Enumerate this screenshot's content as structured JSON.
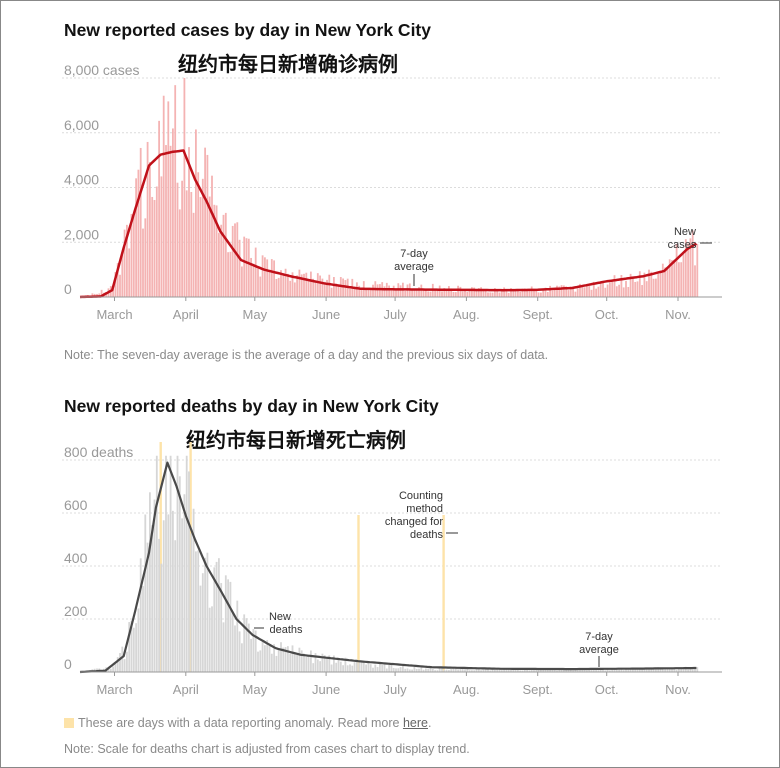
{
  "cases_chart": {
    "title": "New reported cases by day in New York City",
    "subtitle_cn": "纽约市每日新增确诊病例",
    "y_ticks": [
      "8,000 cases",
      "6,000",
      "4,000",
      "2,000",
      "0"
    ],
    "x_ticks": [
      "March",
      "April",
      "May",
      "June",
      "July",
      "Aug.",
      "Sept.",
      "Oct.",
      "Nov."
    ],
    "annotation_avg": [
      "7-day",
      "average"
    ],
    "annotation_new": [
      "New",
      "cases"
    ],
    "note": "Note: The seven-day average is the average of a day and the previous six days of data."
  },
  "deaths_chart": {
    "title": "New reported deaths by day in New York City",
    "subtitle_cn": "纽约市每日新增死亡病例",
    "y_ticks": [
      "800 deaths",
      "600",
      "400",
      "200",
      "0"
    ],
    "x_ticks": [
      "March",
      "April",
      "May",
      "June",
      "July",
      "Aug.",
      "Sept.",
      "Oct.",
      "Nov."
    ],
    "annotation_new": [
      "New",
      "deaths"
    ],
    "annotation_method": [
      "Counting",
      "method",
      "changed for",
      "deaths"
    ],
    "annotation_avg": [
      "7-day",
      "average"
    ],
    "legend_text": "These are days with a data reporting anomaly. Read more ",
    "legend_link": "here",
    "legend_end": ".",
    "note": "Note: Scale for deaths chart is adjusted from cases chart to display trend."
  },
  "colors": {
    "case_bar": "#f4b3b3",
    "case_avg": "#c0111a",
    "death_bar": "#d6d6d6",
    "death_avg": "#4a4a4a",
    "anomaly": "#fde3a9"
  },
  "chart_data": [
    {
      "type": "bar",
      "title": "New reported cases by day in New York City",
      "x_start": "2020-03-01",
      "ylim": [
        0,
        8000
      ],
      "series": [
        {
          "name": "New cases",
          "x": [
            "2020-03-01",
            "2020-03-15",
            "2020-03-20",
            "2020-03-25",
            "2020-03-31",
            "2020-04-05",
            "2020-04-10",
            "2020-04-15",
            "2020-04-20",
            "2020-04-25",
            "2020-05-01",
            "2020-05-10",
            "2020-05-20",
            "2020-06-01",
            "2020-06-15",
            "2020-07-01",
            "2020-07-15",
            "2020-08-01",
            "2020-08-15",
            "2020-09-01",
            "2020-09-15",
            "2020-10-01",
            "2020-10-15",
            "2020-11-01",
            "2020-11-10",
            "2020-11-20",
            "2020-11-24"
          ],
          "y": [
            0,
            300,
            2200,
            3400,
            4800,
            5300,
            5600,
            5400,
            4600,
            4200,
            3200,
            1700,
            1100,
            800,
            650,
            420,
            380,
            350,
            300,
            260,
            280,
            330,
            560,
            720,
            1000,
            1700,
            2000
          ]
        },
        {
          "name": "7-day average",
          "x": [
            "2020-03-01",
            "2020-03-10",
            "2020-03-15",
            "2020-03-20",
            "2020-03-25",
            "2020-03-31",
            "2020-04-05",
            "2020-04-10",
            "2020-04-15",
            "2020-04-20",
            "2020-04-25",
            "2020-05-01",
            "2020-05-10",
            "2020-05-20",
            "2020-06-01",
            "2020-06-15",
            "2020-07-01",
            "2020-07-15",
            "2020-08-01",
            "2020-08-15",
            "2020-09-01",
            "2020-09-15",
            "2020-10-01",
            "2020-10-15",
            "2020-11-01",
            "2020-11-10",
            "2020-11-20",
            "2020-11-24"
          ],
          "y": [
            0,
            20,
            250,
            1800,
            3200,
            4800,
            5200,
            5300,
            5350,
            4300,
            3500,
            2400,
            1350,
            1000,
            750,
            500,
            300,
            280,
            270,
            260,
            250,
            260,
            330,
            560,
            760,
            950,
            1750,
            1950
          ]
        }
      ]
    },
    {
      "type": "bar",
      "title": "New reported deaths by day in New York City",
      "x_start": "2020-03-01",
      "ylim": [
        0,
        800
      ],
      "series": [
        {
          "name": "New deaths",
          "x": [
            "2020-03-01",
            "2020-03-15",
            "2020-03-20",
            "2020-03-25",
            "2020-03-31",
            "2020-04-05",
            "2020-04-08",
            "2020-04-12",
            "2020-04-16",
            "2020-04-20",
            "2020-04-25",
            "2020-05-01",
            "2020-05-08",
            "2020-05-15",
            "2020-05-25",
            "2020-06-05",
            "2020-06-15",
            "2020-07-01",
            "2020-07-15",
            "2020-08-01",
            "2020-09-01",
            "2020-10-01",
            "2020-11-01",
            "2020-11-24"
          ],
          "y": [
            0,
            20,
            80,
            260,
            520,
            700,
            800,
            760,
            650,
            500,
            420,
            300,
            200,
            120,
            90,
            70,
            50,
            30,
            20,
            12,
            10,
            10,
            12,
            14
          ]
        },
        {
          "name": "7-day average",
          "x": [
            "2020-03-01",
            "2020-03-12",
            "2020-03-20",
            "2020-03-25",
            "2020-03-31",
            "2020-04-03",
            "2020-04-08",
            "2020-04-12",
            "2020-04-16",
            "2020-04-20",
            "2020-04-25",
            "2020-05-01",
            "2020-05-08",
            "2020-05-15",
            "2020-05-25",
            "2020-06-05",
            "2020-06-15",
            "2020-07-01",
            "2020-07-15",
            "2020-08-01",
            "2020-09-01",
            "2020-10-01",
            "2020-11-01",
            "2020-11-24"
          ],
          "y": [
            0,
            5,
            60,
            230,
            450,
            620,
            790,
            700,
            590,
            500,
            400,
            310,
            200,
            140,
            90,
            65,
            55,
            40,
            30,
            18,
            12,
            11,
            13,
            15
          ]
        }
      ],
      "anomaly_dates": [
        "2020-04-05",
        "2020-04-18",
        "2020-06-30",
        "2020-08-06"
      ]
    }
  ]
}
